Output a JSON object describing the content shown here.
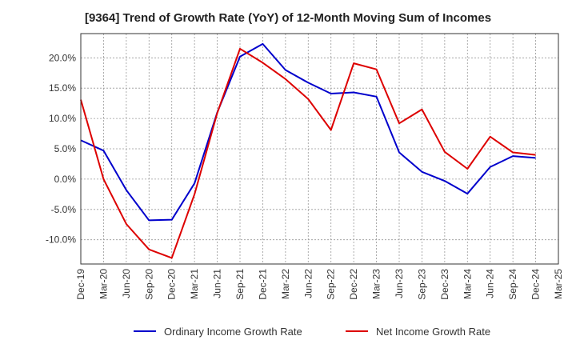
{
  "chart_data": {
    "type": "line",
    "title": "[9364]  Trend of Growth Rate (YoY) of 12-Month Moving Sum of Incomes",
    "xlabel": "",
    "ylabel": "",
    "categories": [
      "Dec-19",
      "Mar-20",
      "Jun-20",
      "Sep-20",
      "Dec-20",
      "Mar-21",
      "Jun-21",
      "Sep-21",
      "Dec-21",
      "Mar-22",
      "Jun-22",
      "Sep-22",
      "Dec-22",
      "Mar-23",
      "Jun-23",
      "Sep-23",
      "Dec-23",
      "Mar-24",
      "Jun-24",
      "Sep-24",
      "Dec-24",
      "Mar-25"
    ],
    "ylim": [
      -14,
      24
    ],
    "yticks": [
      20,
      15,
      10,
      5,
      0,
      -5,
      -10
    ],
    "ytick_labels": [
      "20.0%",
      "15.0%",
      "10.0%",
      "5.0%",
      "0.0%",
      "-5.0%",
      "-10.0%"
    ],
    "grid": true,
    "legend": "bottom",
    "series": [
      {
        "name": "Ordinary Income Growth Rate",
        "color": "#0000cc",
        "values": [
          6.4,
          4.7,
          -1.8,
          -6.8,
          -6.7,
          -0.7,
          11.0,
          20.2,
          22.3,
          18.0,
          15.9,
          14.1,
          14.3,
          13.6,
          4.4,
          1.2,
          -0.3,
          -2.4,
          2.0,
          3.8,
          3.5,
          null
        ]
      },
      {
        "name": "Net Income Growth Rate",
        "color": "#dd0000",
        "values": [
          13.1,
          0.0,
          -7.4,
          -11.6,
          -13.0,
          -2.5,
          10.9,
          21.5,
          19.2,
          16.5,
          13.2,
          8.1,
          19.1,
          18.1,
          9.2,
          11.5,
          4.5,
          1.7,
          7.0,
          4.4,
          4.0,
          null
        ]
      }
    ]
  }
}
